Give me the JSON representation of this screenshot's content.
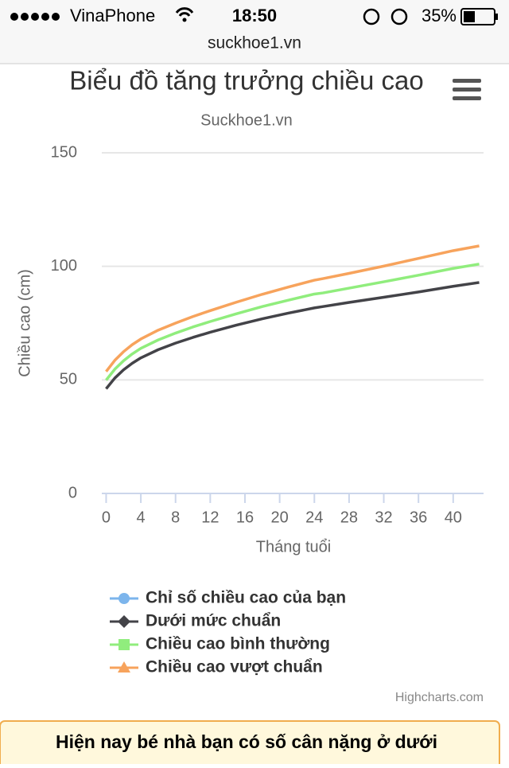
{
  "status": {
    "carrier": "VinaPhone",
    "time": "18:50",
    "battery": "35%"
  },
  "url": "suckhoe1.vn",
  "chart_data": {
    "type": "line",
    "title": "Biểu đồ tăng trưởng chiều cao",
    "subtitle": "Suckhoe1.vn",
    "x_label": "Tháng tuổi",
    "y_label": "Chiều cao (cm)",
    "x": [
      0,
      1,
      2,
      3,
      4,
      6,
      8,
      10,
      12,
      15,
      18,
      21,
      24,
      25,
      28,
      32,
      36,
      40,
      43
    ],
    "series": [
      {
        "name": "Chỉ số chiều cao của bạn",
        "color": "#7cb5ec",
        "marker": "circle",
        "values": [
          null,
          null,
          null,
          null,
          null,
          null,
          null,
          null,
          null,
          null,
          null,
          null,
          null,
          null,
          null,
          null,
          null,
          null,
          null
        ]
      },
      {
        "name": "Dưới mức chuẩn",
        "color": "#434348",
        "marker": "diamond",
        "values": [
          46.1,
          50.8,
          54.4,
          57.3,
          59.7,
          63.3,
          66.2,
          68.7,
          71.0,
          74.1,
          76.9,
          79.4,
          81.7,
          82.3,
          84.1,
          86.4,
          88.7,
          91.2,
          92.9
        ]
      },
      {
        "name": "Chiều cao bình thường",
        "color": "#90ed7d",
        "marker": "square",
        "values": [
          49.9,
          54.7,
          58.4,
          61.4,
          63.9,
          67.6,
          70.6,
          73.3,
          75.7,
          79.1,
          82.3,
          85.1,
          87.8,
          88.3,
          90.4,
          93.2,
          96.1,
          99.1,
          101.0
        ]
      },
      {
        "name": "Chiều cao vượt chuẩn",
        "color": "#f7a35c",
        "marker": "triangle",
        "values": [
          53.7,
          58.6,
          62.4,
          65.5,
          68.0,
          71.9,
          75.0,
          77.9,
          80.5,
          84.2,
          87.7,
          90.9,
          93.9,
          94.6,
          96.9,
          100.1,
          103.5,
          106.9,
          109.0
        ]
      }
    ],
    "xlim": [
      -0.5,
      43.5
    ],
    "xticks": [
      0,
      4,
      8,
      12,
      16,
      20,
      24,
      28,
      32,
      36,
      40
    ],
    "ylim": [
      0,
      150
    ],
    "yticks": [
      0,
      50,
      100,
      150
    ],
    "grid": true,
    "credits": "Highcharts.com"
  },
  "notice": "Hiện nay bé nhà bạn có số cân nặng ở dưới"
}
